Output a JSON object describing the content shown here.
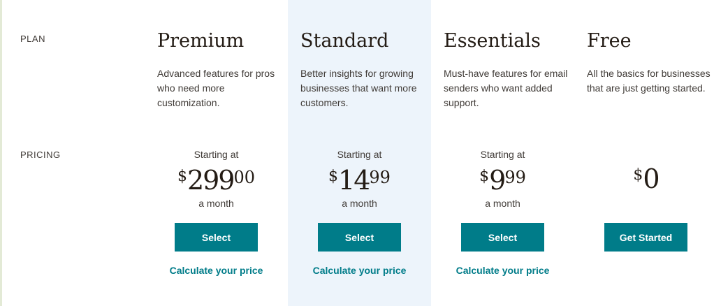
{
  "labels": {
    "plan": "PLAN",
    "pricing": "PRICING"
  },
  "accent_color": "#007c89",
  "highlight_color": "#edf4fb",
  "plans": [
    {
      "name": "Premium",
      "desc": "Advanced features for pros who need more customization.",
      "starting": "Starting at",
      "currency": "$",
      "amount": "299",
      "cents": "00",
      "period": "a month",
      "button": "Select",
      "calc": "Calculate your price"
    },
    {
      "name": "Standard",
      "desc": "Better insights for growing businesses that want more customers.",
      "starting": "Starting at",
      "currency": "$",
      "amount": "14",
      "cents": "99",
      "period": "a month",
      "button": "Select",
      "calc": "Calculate your price"
    },
    {
      "name": "Essentials",
      "desc": "Must-have features for email senders who want added support.",
      "starting": "Starting at",
      "currency": "$",
      "amount": "9",
      "cents": "99",
      "period": "a month",
      "button": "Select",
      "calc": "Calculate your price"
    },
    {
      "name": "Free",
      "desc": "All the basics for businesses that are just getting started.",
      "currency": "$",
      "amount": "0",
      "button": "Get Started"
    }
  ]
}
